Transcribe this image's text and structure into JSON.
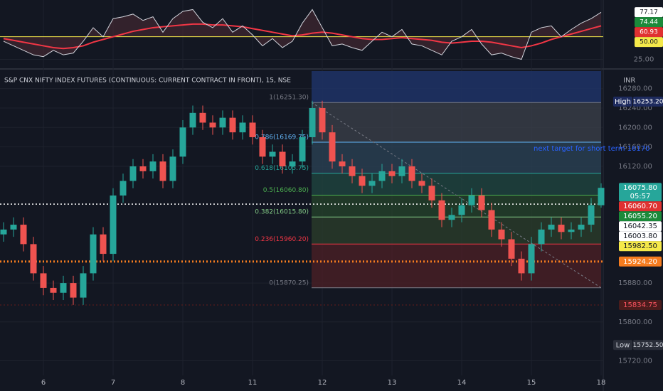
{
  "chart_data": {
    "type": "candlestick",
    "title": "S&P CNX NIFTY INDEX FUTURES (CONTINUOUS: CURRENT CONTRACT IN FRONT), 15, NSE",
    "currency": "INR",
    "categories": [
      null,
      null,
      null,
      null,
      "6",
      null,
      null,
      null,
      null,
      null,
      null,
      "7",
      null,
      null,
      null,
      null,
      null,
      null,
      "8",
      null,
      null,
      null,
      null,
      null,
      null,
      "11",
      null,
      null,
      null,
      null,
      null,
      null,
      "12",
      null,
      null,
      null,
      null,
      null,
      null,
      "13",
      null,
      null,
      null,
      null,
      null,
      null,
      "14",
      null,
      null,
      null,
      null,
      null,
      null,
      "15",
      null,
      null,
      null,
      null,
      null,
      null,
      "18"
    ],
    "open": [
      15980,
      15990,
      16000,
      15960,
      15900,
      15870,
      15860,
      15880,
      15850,
      15900,
      15980,
      15940,
      16060,
      16090,
      16120,
      16110,
      16130,
      16090,
      16140,
      16200,
      16230,
      16210,
      16200,
      16220,
      16190,
      16210,
      16180,
      16140,
      16150,
      16120,
      16130,
      16180,
      16240,
      16190,
      16130,
      16120,
      16100,
      16080,
      16090,
      16110,
      16100,
      16120,
      16090,
      16080,
      16050,
      16010,
      16020,
      16040,
      16060,
      16030,
      15990,
      15970,
      15930,
      15900,
      15960,
      15990,
      16000,
      15985,
      15990,
      16000,
      16040
    ],
    "close": [
      15990,
      16000,
      15960,
      15900,
      15870,
      15860,
      15880,
      15850,
      15900,
      15980,
      15940,
      16060,
      16090,
      16120,
      16110,
      16130,
      16090,
      16140,
      16200,
      16230,
      16210,
      16200,
      16220,
      16190,
      16210,
      16180,
      16140,
      16150,
      16120,
      16130,
      16180,
      16240,
      16190,
      16130,
      16120,
      16100,
      16080,
      16090,
      16110,
      16100,
      16120,
      16090,
      16080,
      16050,
      16010,
      16020,
      16040,
      16060,
      16030,
      15990,
      15970,
      15930,
      15900,
      15960,
      15990,
      16000,
      15985,
      15990,
      16000,
      16040,
      16075.8
    ],
    "high": [
      16005,
      16015,
      16015,
      15975,
      15915,
      15885,
      15895,
      15895,
      15915,
      15995,
      15995,
      16075,
      16105,
      16135,
      16135,
      16145,
      16145,
      16155,
      16215,
      16245,
      16245,
      16225,
      16235,
      16235,
      16225,
      16225,
      16195,
      16165,
      16165,
      16145,
      16195,
      16255,
      16255,
      16205,
      16145,
      16135,
      16115,
      16105,
      16125,
      16125,
      16135,
      16135,
      16105,
      16095,
      16065,
      16035,
      16055,
      16075,
      16075,
      16045,
      16005,
      15985,
      15945,
      15975,
      16005,
      16015,
      16015,
      16005,
      16015,
      16055,
      16085
    ],
    "low": [
      15965,
      15975,
      15945,
      15885,
      15855,
      15845,
      15845,
      15835,
      15835,
      15885,
      15925,
      15925,
      16045,
      16075,
      16095,
      16095,
      16075,
      16075,
      16125,
      16185,
      16195,
      16185,
      16185,
      16175,
      16175,
      16165,
      16125,
      16125,
      16105,
      16105,
      16115,
      16165,
      16175,
      16115,
      16105,
      16085,
      16065,
      16065,
      16075,
      16085,
      16085,
      16075,
      16065,
      16035,
      15995,
      15995,
      16005,
      16025,
      16015,
      15975,
      15955,
      15915,
      15885,
      15885,
      15945,
      15975,
      15970,
      15970,
      15975,
      15985,
      16035
    ],
    "up_color": "#26a69a",
    "down_color": "#ef5350",
    "ylim": [
      15690,
      16316
    ],
    "yticks": [
      {
        "value": 15720,
        "label": "15720.00"
      },
      {
        "value": 15800,
        "label": "15800.00"
      },
      {
        "value": 15880,
        "label": "15880.00"
      },
      {
        "value": 16120,
        "label": "16120.00"
      },
      {
        "value": 16160,
        "label": "16160.00"
      },
      {
        "value": 16200,
        "label": "16200.00"
      },
      {
        "value": 16240,
        "label": "16240.00"
      },
      {
        "value": 16280,
        "label": "16280.00"
      }
    ],
    "grid": true,
    "fib_levels": [
      {
        "label": "1(16251.30)",
        "value": 16251.3,
        "color": "#787b86",
        "fill": "#3a3e48"
      },
      {
        "label": "0.786(16169.75)",
        "value": 16169.75,
        "color": "#64b5f6",
        "fill": "#2b4154"
      },
      {
        "label": "0.618(16105.75)",
        "value": 16105.75,
        "color": "#26a69a",
        "fill": "#1f4540"
      },
      {
        "label": "0.5(16060.80)",
        "value": 16060.8,
        "color": "#4caf50",
        "fill": "#24412a"
      },
      {
        "label": "0.382(16015.80)",
        "value": 16015.8,
        "color": "#81c784",
        "fill": "#2a3c2b"
      },
      {
        "label": "0.236(15960.20)",
        "value": 15960.2,
        "color": "#f23645",
        "fill": "#4a1f26"
      },
      {
        "label": "0(15870.25)",
        "value": 15870.25,
        "color": "#787b86",
        "fill": "#3a2a30"
      }
    ],
    "annotation": "next target for short term  16170",
    "price_badges": [
      {
        "value": 16253.2,
        "label": "16253.20",
        "tag": "High",
        "bg": "#1e2b5e",
        "fg": "#ffffff"
      },
      {
        "value": 16075.8,
        "label": "16075.80",
        "sublabel": "05:57",
        "bg": "#26a69a",
        "fg": "#ffffff"
      },
      {
        "value": 16060.7,
        "label": "16060.70",
        "bg": "#e03131",
        "fg": "#ffffff"
      },
      {
        "value": 16055.2,
        "label": "16055.20",
        "bg": "#1b8a3a",
        "fg": "#ffffff"
      },
      {
        "value": 16042.35,
        "label": "16042.35",
        "bg": "#ffffff",
        "fg": "#131722",
        "style": "dotted"
      },
      {
        "value": 16003.8,
        "label": "16003.80",
        "bg": "#ffffff",
        "fg": "#131722"
      },
      {
        "value": 15982.5,
        "label": "15982.50",
        "bg": "#f5e94a",
        "fg": "#131722"
      },
      {
        "value": 15924.2,
        "label": "15924.20",
        "bg": "#f57c1f",
        "fg": "#ffffff",
        "style": "dotted"
      },
      {
        "value": 15834.75,
        "label": "15834.75",
        "bg": "#4a1c1c",
        "fg": "#f7525f",
        "style": "dotted"
      },
      {
        "value": 15752.5,
        "label": "15752.50",
        "tag": "Low",
        "bg": "#2a2e39",
        "fg": "#d1d4dc"
      }
    ],
    "rsi": {
      "values": [
        45,
        40,
        35,
        30,
        28,
        35,
        30,
        32,
        45,
        60,
        50,
        70,
        72,
        75,
        68,
        72,
        55,
        70,
        78,
        80,
        66,
        60,
        70,
        55,
        62,
        52,
        40,
        48,
        38,
        45,
        65,
        80,
        60,
        40,
        42,
        38,
        35,
        45,
        55,
        50,
        58,
        42,
        40,
        35,
        30,
        45,
        50,
        58,
        42,
        30,
        32,
        28,
        25,
        55,
        60,
        62,
        50,
        58,
        65,
        70,
        77
      ],
      "ma": [
        48,
        46,
        44,
        42,
        40,
        38,
        37,
        38,
        40,
        44,
        47,
        50,
        53,
        56,
        58,
        60,
        61,
        62,
        63,
        64,
        64,
        63,
        63,
        62,
        61,
        59,
        57,
        55,
        53,
        51,
        52,
        54,
        55,
        54,
        52,
        50,
        48,
        47,
        47,
        48,
        49,
        48,
        47,
        46,
        44,
        43,
        44,
        45,
        45,
        44,
        42,
        40,
        38,
        40,
        43,
        47,
        50,
        53,
        56,
        59,
        62
      ],
      "color": "#d1d4dc",
      "ma_color": "#f23645",
      "level": 50,
      "level_color": "#f5e94a",
      "ylim": [
        16,
        89
      ],
      "yticks": [
        {
          "value": 25,
          "label": "25.00"
        }
      ],
      "badges": [
        {
          "value": 77.17,
          "label": "77.17",
          "bg": "#ffffff",
          "fg": "#131722"
        },
        {
          "value": 74.44,
          "label": "74.44",
          "bg": "#1b8a3a",
          "fg": "#ffffff"
        },
        {
          "value": 60.93,
          "label": "60.93",
          "bg": "#e03131",
          "fg": "#ffffff"
        },
        {
          "value": 50,
          "label": "50.00",
          "bg": "#f5e94a",
          "fg": "#131722"
        }
      ]
    }
  }
}
